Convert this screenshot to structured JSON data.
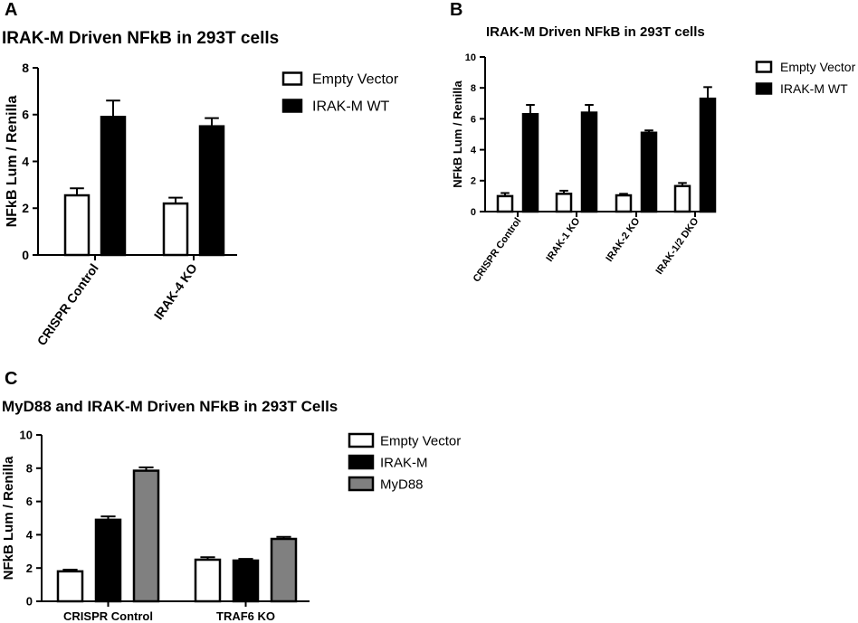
{
  "chart_data": [
    {
      "panel": "A",
      "type": "bar",
      "title": "IRAK-M Driven NFkB in 293T cells",
      "ylabel": "NFkB Lum / Renilla",
      "xlabel": "",
      "ylim": [
        0,
        8
      ],
      "yticks": [
        "0",
        "2",
        "4",
        "6",
        "8"
      ],
      "categories": [
        "CRISPR Control",
        "IRAK-4 KO"
      ],
      "series": [
        {
          "name": "Empty Vector",
          "color": "#ffffff",
          "values": [
            2.55,
            2.2
          ],
          "errors": [
            0.3,
            0.25
          ]
        },
        {
          "name": "IRAK-M WT",
          "color": "#000000",
          "values": [
            5.9,
            5.5
          ],
          "errors": [
            0.7,
            0.35
          ]
        }
      ],
      "legend": "top-right",
      "grid": false
    },
    {
      "panel": "B",
      "type": "bar",
      "title": "IRAK-M Driven NFkB in 293T cells",
      "ylabel": "NFkB Lum / Renilla",
      "xlabel": "",
      "ylim": [
        0,
        10
      ],
      "yticks": [
        "0",
        "2",
        "4",
        "6",
        "8",
        "10"
      ],
      "categories": [
        "CRISPR Control",
        "IRAK-1 KO",
        "IRAK-2 KO",
        "IRAK-1/2 DKO"
      ],
      "series": [
        {
          "name": "Empty Vector",
          "color": "#ffffff",
          "values": [
            1.0,
            1.15,
            1.05,
            1.65
          ],
          "errors": [
            0.2,
            0.2,
            0.1,
            0.2
          ]
        },
        {
          "name": "IRAK-M WT",
          "color": "#000000",
          "values": [
            6.3,
            6.4,
            5.1,
            7.3
          ],
          "errors": [
            0.6,
            0.5,
            0.15,
            0.75
          ]
        }
      ],
      "legend": "top-right",
      "grid": false
    },
    {
      "panel": "C",
      "type": "bar",
      "title": "MyD88 and IRAK-M Driven NFkB in 293T Cells",
      "ylabel": "NFkB Lum / Renilla",
      "xlabel": "",
      "ylim": [
        0,
        10
      ],
      "yticks": [
        "0",
        "2",
        "4",
        "6",
        "8",
        "10"
      ],
      "categories": [
        "CRISPR Control",
        "TRAF6 KO"
      ],
      "series": [
        {
          "name": "Empty Vector",
          "color": "#ffffff",
          "values": [
            1.8,
            2.5
          ],
          "errors": [
            0.1,
            0.15
          ]
        },
        {
          "name": "IRAK-M",
          "color": "#000000",
          "values": [
            4.9,
            2.45
          ],
          "errors": [
            0.2,
            0.1
          ]
        },
        {
          "name": "MyD88",
          "color": "#808080",
          "values": [
            7.85,
            3.75
          ],
          "errors": [
            0.2,
            0.12
          ]
        }
      ],
      "legend": "right",
      "grid": false
    }
  ]
}
